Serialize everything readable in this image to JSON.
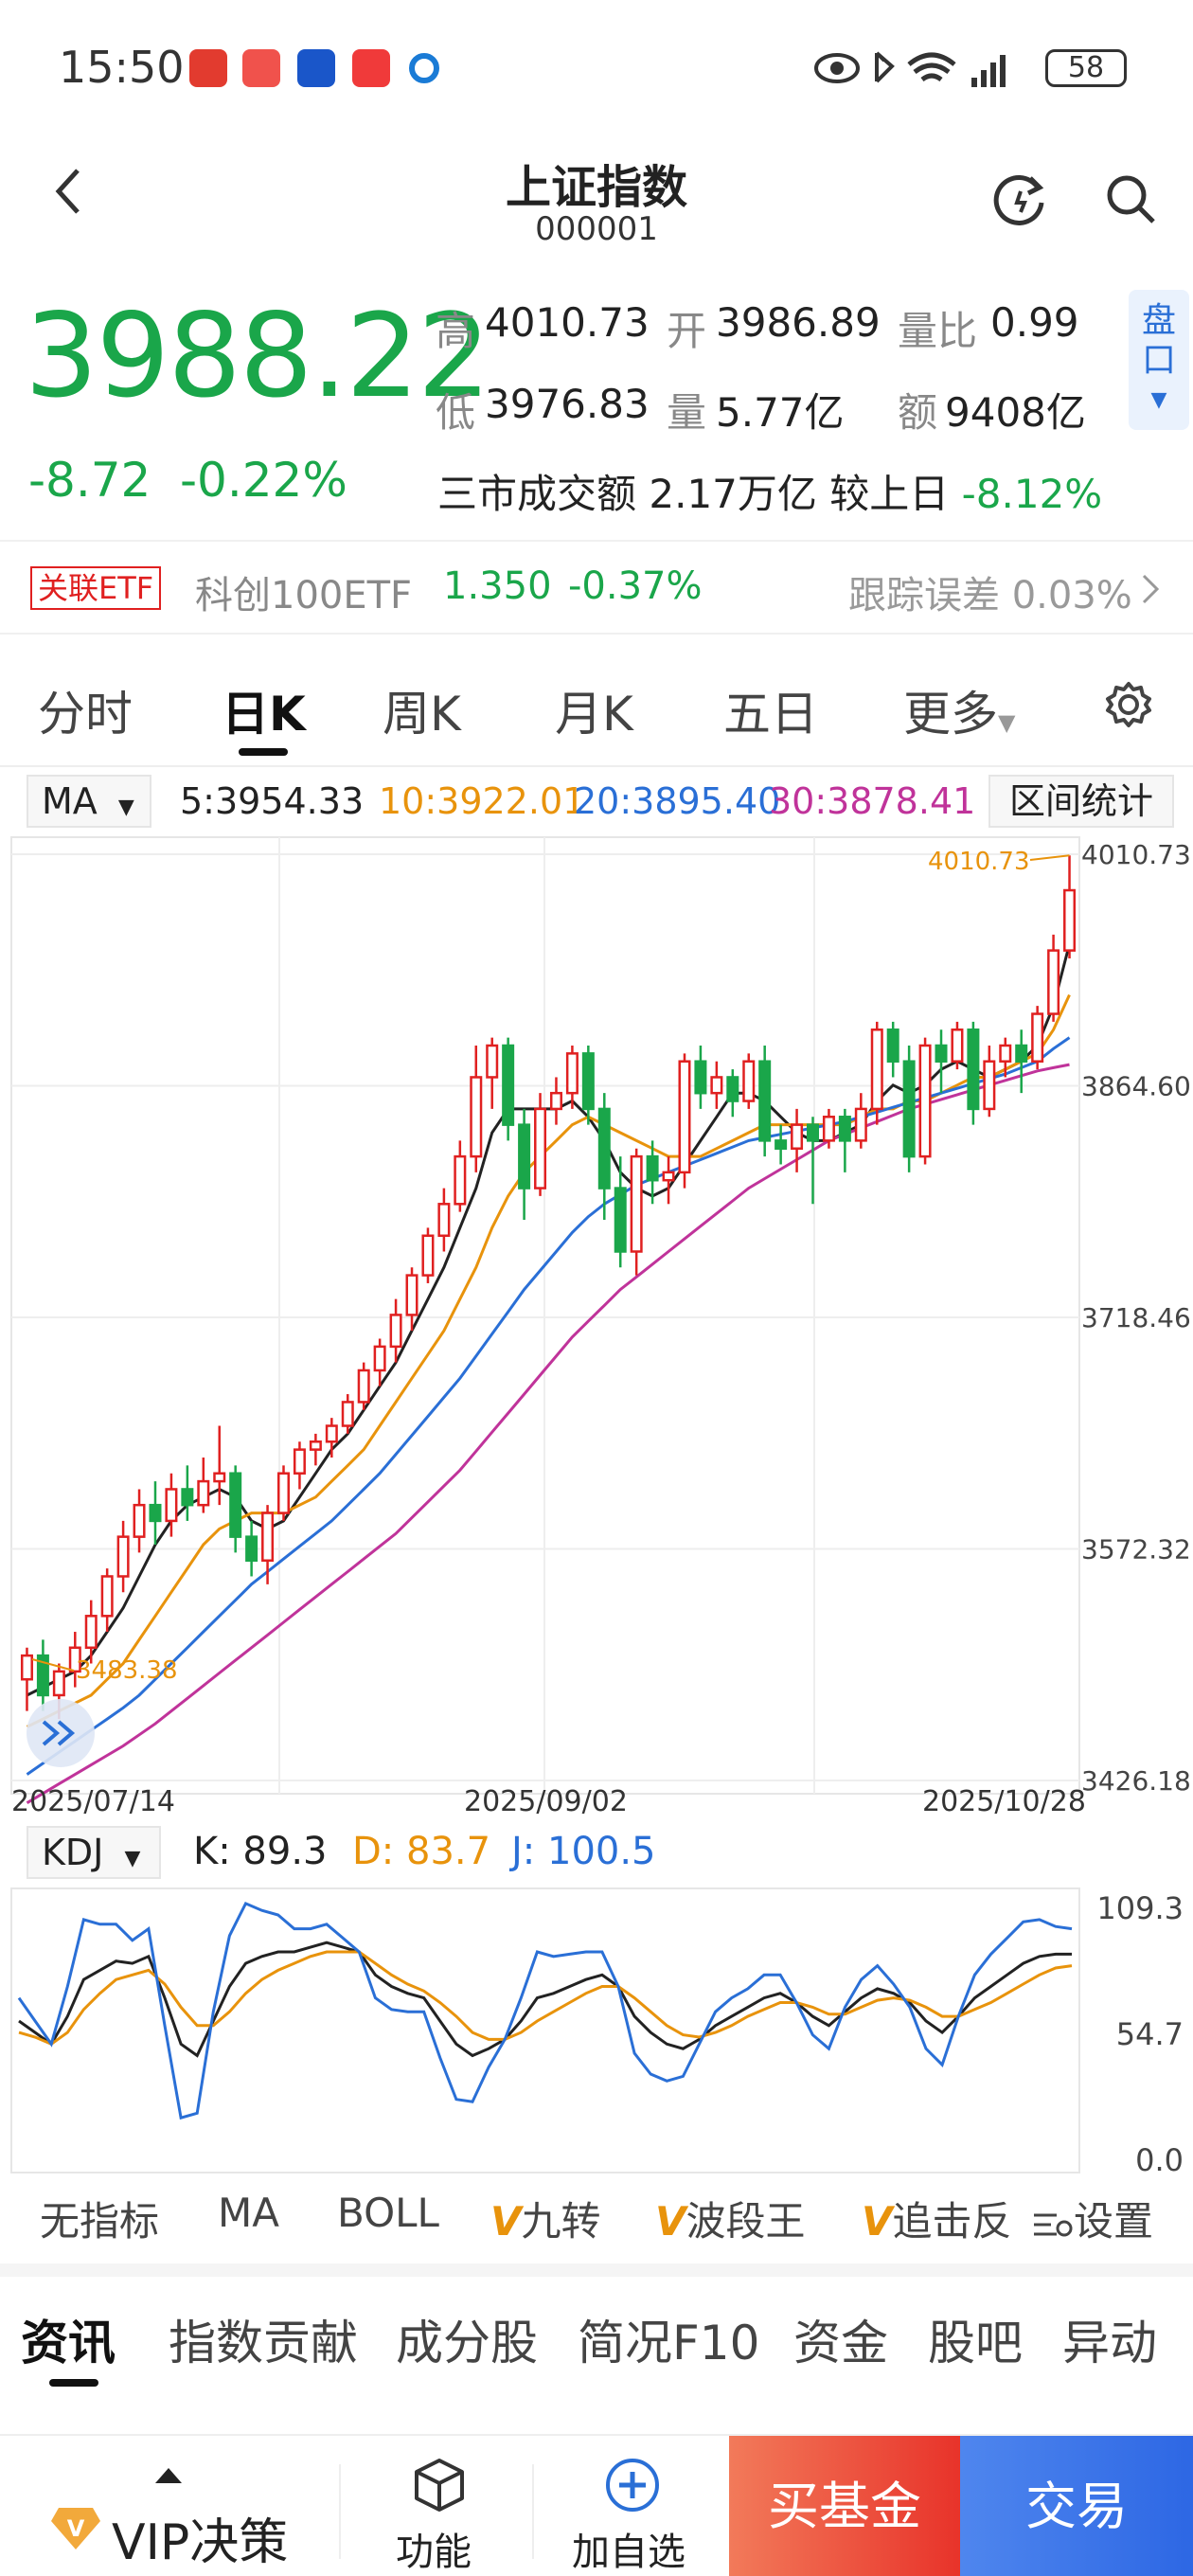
{
  "status_bar": {
    "time": "15:50",
    "battery": "58"
  },
  "header": {
    "title": "上证指数",
    "code": "000001"
  },
  "quote": {
    "price": "3988.22",
    "change": "-8.72",
    "change_pct": "-0.22%",
    "high_label": "高",
    "high": "4010.73",
    "open_label": "开",
    "open": "3986.89",
    "ratio_label": "量比",
    "ratio": "0.99",
    "low_label": "低",
    "low": "3976.83",
    "volume_label": "量",
    "volume": "5.77亿",
    "amount_label": "额",
    "amount": "9408亿",
    "pankou": "盘口",
    "market_turnover_label": "三市成交额",
    "market_turnover": "2.17万亿",
    "vs_prev_label": "较上日",
    "vs_prev": "-8.12%"
  },
  "etf": {
    "tag": "关联ETF",
    "name": "科创100ETF",
    "price": "1.350",
    "pct": "-0.37%",
    "tracking": "跟踪误差 0.03%"
  },
  "tabs": [
    "分时",
    "日K",
    "周K",
    "月K",
    "五日",
    "更多"
  ],
  "ma_legend": {
    "select": "MA",
    "ma5": "5:3954.33",
    "ma10": "10:3922.01",
    "ma20": "20:3895.40",
    "ma30": "30:3878.41",
    "range_stat": "区间统计"
  },
  "kdj_legend": {
    "select": "KDJ",
    "k": "K: 89.3",
    "d": "D: 83.7",
    "j": "J: 100.5"
  },
  "indicator_tabs": {
    "none": "无指标",
    "ma": "MA",
    "boll": "BOLL",
    "jiuzhuan": "九转",
    "boduan": "波段王",
    "zhuiji": "追击反",
    "settings": "设置"
  },
  "section_tabs": [
    "资讯",
    "指数贡献",
    "成分股",
    "简况F10",
    "资金",
    "股吧",
    "异动"
  ],
  "bottom_bar": {
    "vip": "VIP决策",
    "func": "功能",
    "fav": "加自选",
    "buy_fund": "买基金",
    "trade": "交易"
  },
  "colors": {
    "up": "#e02020",
    "down": "#1aa64a",
    "ma5": "#222222",
    "ma10": "#e8930c",
    "ma20": "#2a6fd6",
    "ma30": "#c0339a"
  },
  "chart_data": {
    "type": "candlestick",
    "y_axis_ticks": [
      "4010.73",
      "3864.60",
      "3718.46",
      "3572.32",
      "3426.18"
    ],
    "ylim": [
      3426.18,
      4010.73
    ],
    "x_axis_labels": [
      "2025/07/14",
      "2025/09/02",
      "2025/10/28"
    ],
    "high_marker": "4010.73",
    "low_marker": "3483.38",
    "candles": [
      [
        3490,
        3505,
        3470,
        3510
      ],
      [
        3505,
        3480,
        3470,
        3515
      ],
      [
        3480,
        3495,
        3465,
        3500
      ],
      [
        3495,
        3510,
        3485,
        3520
      ],
      [
        3510,
        3530,
        3500,
        3540
      ],
      [
        3530,
        3555,
        3520,
        3560
      ],
      [
        3555,
        3580,
        3545,
        3590
      ],
      [
        3580,
        3600,
        3570,
        3610
      ],
      [
        3600,
        3590,
        3575,
        3615
      ],
      [
        3590,
        3610,
        3580,
        3620
      ],
      [
        3610,
        3600,
        3590,
        3625
      ],
      [
        3600,
        3615,
        3595,
        3630
      ],
      [
        3615,
        3620,
        3600,
        3650
      ],
      [
        3620,
        3580,
        3570,
        3625
      ],
      [
        3580,
        3565,
        3555,
        3590
      ],
      [
        3565,
        3595,
        3550,
        3600
      ],
      [
        3595,
        3620,
        3590,
        3625
      ],
      [
        3620,
        3635,
        3610,
        3640
      ],
      [
        3635,
        3640,
        3625,
        3645
      ],
      [
        3640,
        3650,
        3630,
        3655
      ],
      [
        3650,
        3665,
        3645,
        3670
      ],
      [
        3665,
        3685,
        3660,
        3690
      ],
      [
        3685,
        3700,
        3675,
        3705
      ],
      [
        3700,
        3720,
        3690,
        3730
      ],
      [
        3720,
        3745,
        3710,
        3750
      ],
      [
        3745,
        3770,
        3740,
        3775
      ],
      [
        3770,
        3790,
        3760,
        3800
      ],
      [
        3790,
        3820,
        3785,
        3830
      ],
      [
        3820,
        3870,
        3810,
        3890
      ],
      [
        3870,
        3890,
        3850,
        3895
      ],
      [
        3890,
        3840,
        3830,
        3895
      ],
      [
        3840,
        3800,
        3780,
        3850
      ],
      [
        3800,
        3850,
        3795,
        3860
      ],
      [
        3850,
        3860,
        3840,
        3870
      ],
      [
        3860,
        3885,
        3850,
        3890
      ],
      [
        3885,
        3850,
        3840,
        3890
      ],
      [
        3850,
        3800,
        3780,
        3860
      ],
      [
        3800,
        3760,
        3750,
        3820
      ],
      [
        3760,
        3820,
        3745,
        3825
      ],
      [
        3820,
        3805,
        3790,
        3830
      ],
      [
        3805,
        3810,
        3790,
        3820
      ],
      [
        3810,
        3880,
        3800,
        3885
      ],
      [
        3880,
        3860,
        3850,
        3890
      ],
      [
        3860,
        3870,
        3850,
        3880
      ],
      [
        3870,
        3855,
        3845,
        3875
      ],
      [
        3855,
        3880,
        3850,
        3885
      ],
      [
        3880,
        3830,
        3820,
        3890
      ],
      [
        3830,
        3825,
        3815,
        3840
      ],
      [
        3825,
        3840,
        3810,
        3850
      ],
      [
        3840,
        3830,
        3790,
        3845
      ],
      [
        3830,
        3845,
        3825,
        3850
      ],
      [
        3845,
        3830,
        3810,
        3850
      ],
      [
        3830,
        3850,
        3825,
        3860
      ],
      [
        3850,
        3900,
        3840,
        3905
      ],
      [
        3900,
        3880,
        3870,
        3905
      ],
      [
        3880,
        3820,
        3810,
        3890
      ],
      [
        3820,
        3890,
        3815,
        3895
      ],
      [
        3890,
        3880,
        3860,
        3900
      ],
      [
        3880,
        3900,
        3875,
        3905
      ],
      [
        3900,
        3850,
        3840,
        3905
      ],
      [
        3850,
        3880,
        3845,
        3890
      ],
      [
        3880,
        3890,
        3870,
        3895
      ],
      [
        3890,
        3880,
        3860,
        3900
      ],
      [
        3880,
        3910,
        3875,
        3915
      ],
      [
        3910,
        3950,
        3905,
        3960
      ],
      [
        3950,
        3988,
        3945,
        4010
      ]
    ],
    "series": [
      {
        "name": "MA5",
        "values": [
          3480,
          3485,
          3490,
          3495,
          3505,
          3520,
          3535,
          3555,
          3575,
          3590,
          3600,
          3605,
          3610,
          3605,
          3590,
          3585,
          3590,
          3605,
          3620,
          3635,
          3645,
          3660,
          3675,
          3690,
          3710,
          3730,
          3750,
          3775,
          3800,
          3835,
          3850,
          3850,
          3850,
          3850,
          3855,
          3845,
          3830,
          3810,
          3800,
          3795,
          3800,
          3815,
          3830,
          3845,
          3860,
          3860,
          3855,
          3845,
          3835,
          3830,
          3830,
          3835,
          3840,
          3855,
          3865,
          3860,
          3865,
          3875,
          3880,
          3875,
          3870,
          3875,
          3880,
          3890,
          3915,
          3954
        ]
      },
      {
        "name": "MA10",
        "values": [
          3460,
          3465,
          3470,
          3475,
          3480,
          3490,
          3500,
          3515,
          3530,
          3545,
          3560,
          3575,
          3585,
          3590,
          3595,
          3595,
          3595,
          3600,
          3605,
          3615,
          3625,
          3635,
          3650,
          3665,
          3680,
          3695,
          3710,
          3730,
          3750,
          3775,
          3795,
          3810,
          3820,
          3830,
          3840,
          3845,
          3840,
          3835,
          3830,
          3825,
          3820,
          3820,
          3820,
          3825,
          3830,
          3835,
          3840,
          3840,
          3840,
          3840,
          3840,
          3840,
          3845,
          3850,
          3850,
          3855,
          3855,
          3860,
          3865,
          3870,
          3870,
          3875,
          3880,
          3885,
          3900,
          3922
        ]
      },
      {
        "name": "MA20",
        "values": [
          3430,
          3437,
          3444,
          3451,
          3458,
          3465,
          3472,
          3480,
          3490,
          3500,
          3510,
          3520,
          3530,
          3540,
          3550,
          3558,
          3566,
          3574,
          3582,
          3590,
          3600,
          3610,
          3620,
          3632,
          3644,
          3656,
          3668,
          3680,
          3694,
          3708,
          3722,
          3736,
          3748,
          3760,
          3772,
          3782,
          3790,
          3796,
          3802,
          3806,
          3810,
          3814,
          3818,
          3822,
          3826,
          3830,
          3832,
          3834,
          3836,
          3838,
          3840,
          3842,
          3845,
          3848,
          3851,
          3854,
          3857,
          3860,
          3863,
          3866,
          3869,
          3872,
          3876,
          3880,
          3888,
          3895
        ]
      },
      {
        "name": "MA30",
        "values": [
          3412,
          3418,
          3424,
          3430,
          3436,
          3442,
          3448,
          3455,
          3462,
          3470,
          3478,
          3486,
          3494,
          3502,
          3510,
          3518,
          3526,
          3534,
          3542,
          3550,
          3558,
          3566,
          3574,
          3582,
          3592,
          3602,
          3612,
          3622,
          3634,
          3646,
          3658,
          3670,
          3682,
          3694,
          3706,
          3716,
          3726,
          3736,
          3744,
          3752,
          3760,
          3768,
          3776,
          3784,
          3792,
          3800,
          3806,
          3812,
          3818,
          3824,
          3830,
          3834,
          3838,
          3842,
          3846,
          3850,
          3853,
          3856,
          3859,
          3862,
          3865,
          3868,
          3871,
          3874,
          3876,
          3878
        ]
      }
    ],
    "kdj": {
      "y_ticks": [
        "109.3",
        "54.7",
        "0.0"
      ],
      "ylim": [
        0,
        109.3
      ],
      "K": [
        60,
        55,
        50,
        62,
        78,
        82,
        86,
        85,
        88,
        70,
        50,
        45,
        60,
        75,
        85,
        88,
        90,
        90,
        92,
        94,
        92,
        90,
        80,
        75,
        72,
        70,
        60,
        50,
        45,
        48,
        52,
        60,
        70,
        72,
        75,
        78,
        80,
        75,
        62,
        55,
        50,
        48,
        52,
        58,
        62,
        66,
        70,
        72,
        68,
        62,
        58,
        64,
        70,
        74,
        72,
        68,
        60,
        55,
        62,
        70,
        75,
        80,
        85,
        88,
        89,
        89
      ],
      "D": [
        55,
        53,
        50,
        55,
        65,
        72,
        78,
        80,
        82,
        76,
        66,
        58,
        58,
        64,
        72,
        78,
        82,
        85,
        88,
        90,
        90,
        90,
        85,
        80,
        76,
        73,
        68,
        62,
        55,
        52,
        52,
        55,
        60,
        64,
        68,
        72,
        75,
        75,
        70,
        64,
        58,
        54,
        53,
        55,
        58,
        62,
        65,
        68,
        68,
        66,
        63,
        63,
        66,
        69,
        70,
        69,
        66,
        62,
        62,
        65,
        68,
        72,
        76,
        80,
        83,
        84
      ],
      "J": [
        70,
        60,
        50,
        75,
        104,
        102,
        102,
        95,
        100,
        58,
        18,
        20,
        64,
        97,
        111,
        108,
        106,
        100,
        100,
        102,
        96,
        90,
        70,
        65,
        64,
        64,
        44,
        26,
        25,
        40,
        52,
        70,
        90,
        88,
        89,
        90,
        90,
        75,
        46,
        37,
        34,
        36,
        50,
        64,
        70,
        74,
        80,
        80,
        68,
        54,
        48,
        66,
        78,
        84,
        76,
        66,
        48,
        41,
        62,
        80,
        89,
        96,
        103,
        104,
        101,
        100
      ]
    }
  }
}
